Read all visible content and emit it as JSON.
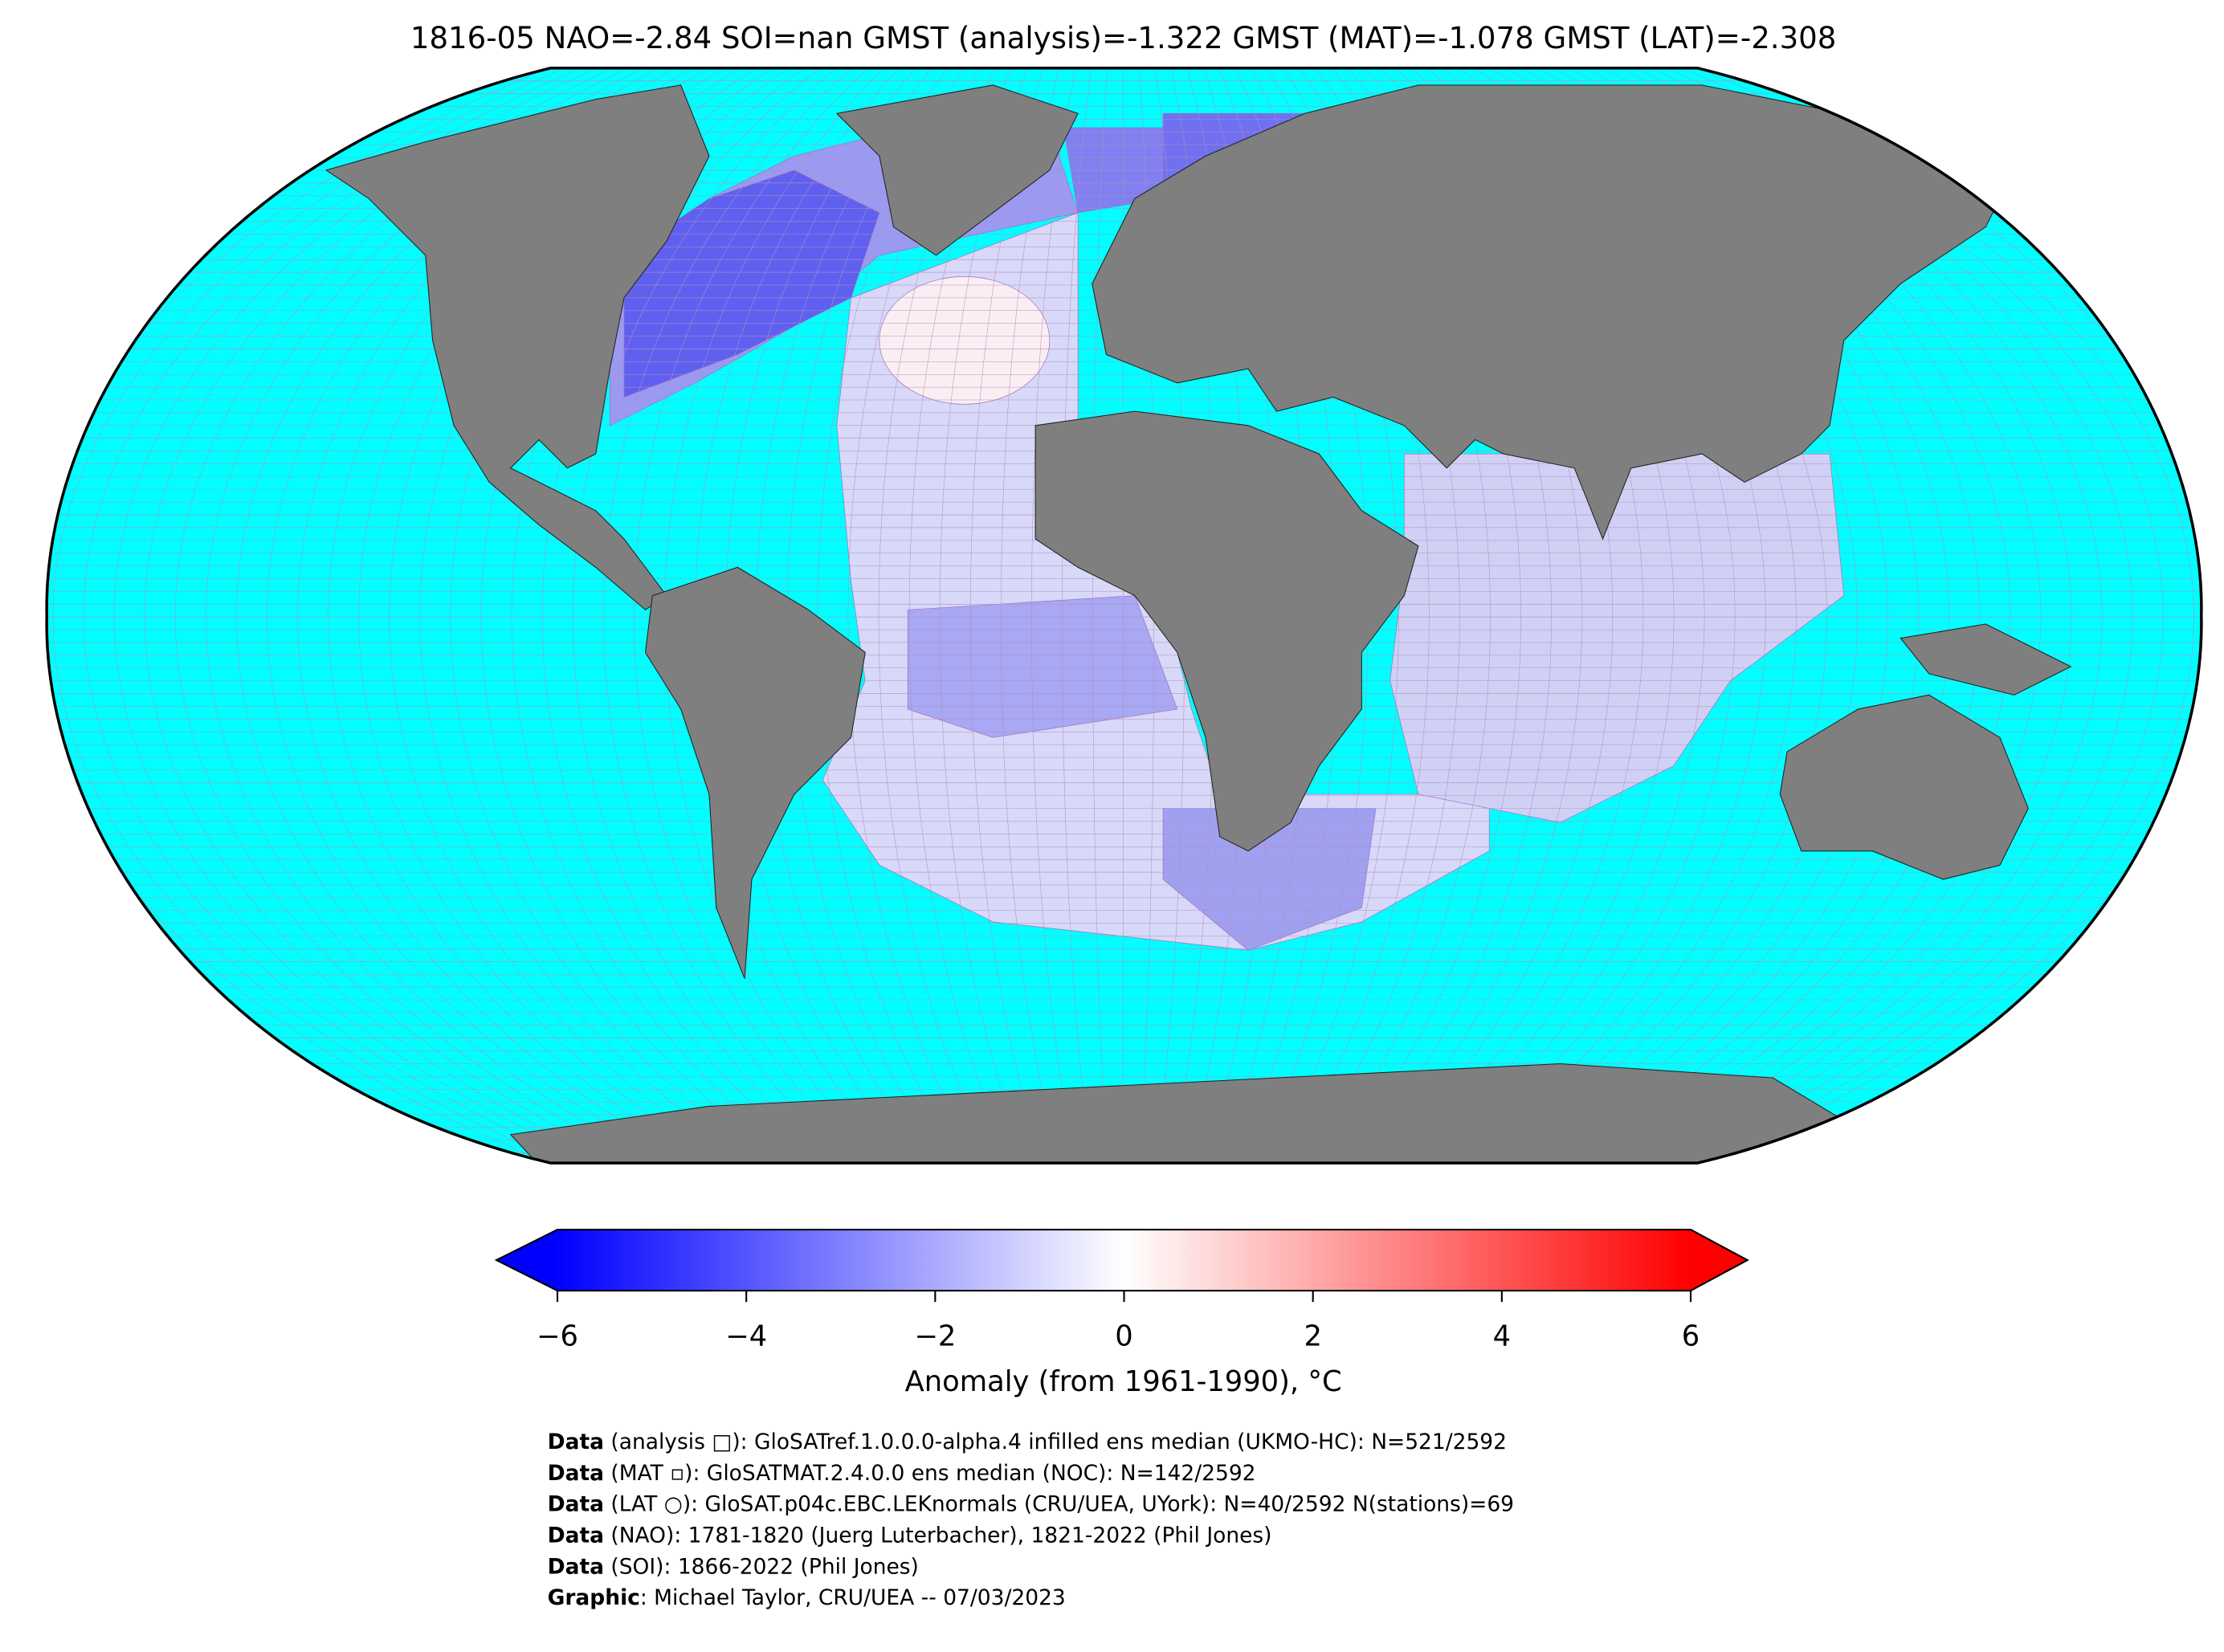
{
  "title": "1816-05 NAO=-2.84 SOI=nan GMST (analysis)=-1.322 GMST (MAT)=-1.078 GMST (LAT)=-2.308",
  "colorbar": {
    "label": "Anomaly (from 1961-1990), °C",
    "lim": [
      -6,
      6
    ],
    "ticks": [
      {
        "value": -6,
        "label": "−6"
      },
      {
        "value": -4,
        "label": "−4"
      },
      {
        "value": -2,
        "label": "−2"
      },
      0,
      2,
      4,
      6
    ],
    "colors": [
      "#0000ff",
      "#ffffff",
      "#ff0000"
    ]
  },
  "credits": [
    {
      "bold": "Data",
      "text": " (analysis □): GloSATref.1.0.0.0-alpha.4 infilled ens median (UKMO-HC): N=521/2592"
    },
    {
      "bold": "Data",
      "text": " (MAT ▫): GloSATMAT.2.4.0.0 ens median (NOC): N=142/2592"
    },
    {
      "bold": "Data",
      "text": " (LAT ○): GloSAT.p04c.EBC.LEKnormals (CRU/UEA, UYork): N=40/2592 N(stations)=69"
    },
    {
      "bold": "Data",
      "text": " (NAO): 1781-1820 (Juerg Luterbacher), 1821-2022 (Phil Jones)"
    },
    {
      "bold": "Data",
      "text": " (SOI): 1866-2022 (Phil Jones)"
    },
    {
      "bold": "Graphic",
      "text": ": Michael Taylor, CRU/UEA -- 07/03/2023"
    }
  ]
}
